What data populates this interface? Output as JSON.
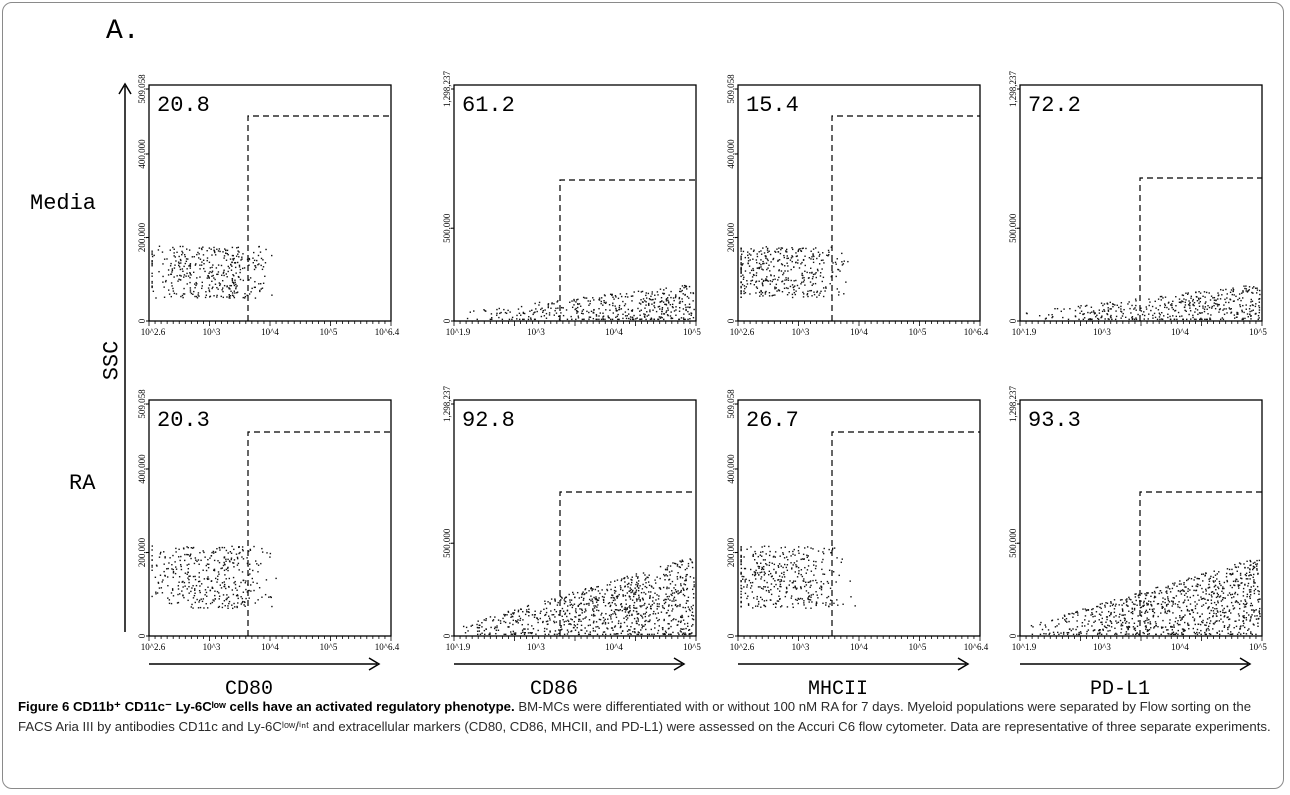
{
  "figure": {
    "panel_label": "A.",
    "rows": [
      "Media",
      "RA"
    ],
    "y_label": "SSC",
    "columns": [
      {
        "marker": "CD80",
        "y_tick_labels": [
          "0",
          "200,000",
          "400,000",
          "509,058"
        ],
        "x_tick_labels": [
          "10^2.6",
          "10^3",
          "10^4",
          "10^5",
          "10^6.4"
        ],
        "gate_percent": [
          "20.8",
          "20.3"
        ]
      },
      {
        "marker": "CD86",
        "y_tick_labels": [
          "0",
          "500,000",
          "1,298,237"
        ],
        "x_tick_labels": [
          "10^1.9",
          "10^3",
          "10^4",
          "10^5"
        ],
        "gate_percent": [
          "61.2",
          "92.8"
        ]
      },
      {
        "marker": "MHCII",
        "y_tick_labels": [
          "0",
          "200,000",
          "400,000",
          "509,058"
        ],
        "x_tick_labels": [
          "10^2.6",
          "10^3",
          "10^4",
          "10^5",
          "10^6.4"
        ],
        "gate_percent": [
          "15.4",
          "26.7"
        ]
      },
      {
        "marker": "PD-L1",
        "y_tick_labels": [
          "0",
          "500,000",
          "1,298,237"
        ],
        "x_tick_labels": [
          "10^1.9",
          "10^3",
          "10^4",
          "10^5"
        ],
        "gate_percent": [
          "72.2",
          "93.3"
        ]
      }
    ]
  },
  "caption": {
    "title": "Figure 6 CD11b⁺ CD11c⁻ Ly-6Cˡᵒʷ cells have an activated regulatory phenotype.",
    "body": "BM-MCs were differentiated with or without 100 nM RA for 7 days. Myeloid populations were separated by Flow sorting on the FACS Aria III by antibodies CD11c and Ly-6Cˡᵒʷ/ⁱⁿᵗ and extracellular markers (CD80, CD86, MHCII, and PD-L1) were assessed on the Accuri C6 flow cytometer. Data are representative of three separate experiments."
  }
}
